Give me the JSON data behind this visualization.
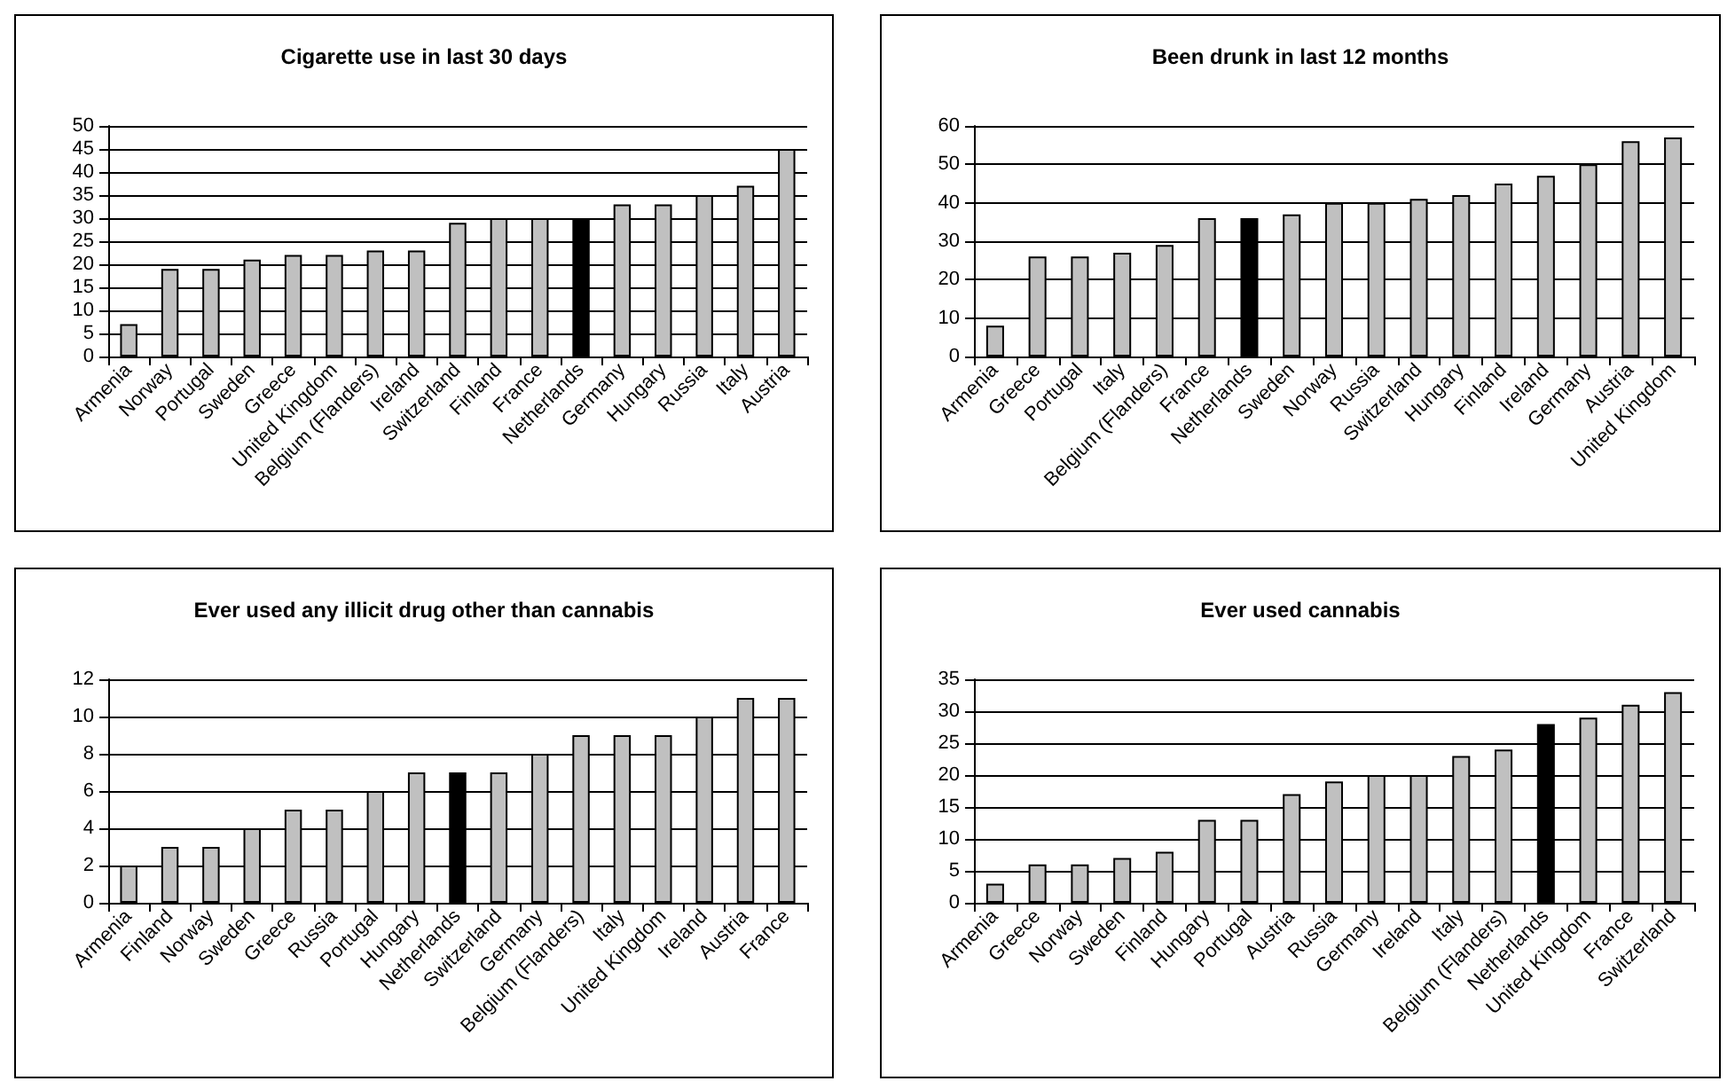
{
  "chart_data": [
    {
      "type": "bar",
      "title": "Cigarette use in last 30 days",
      "categories": [
        "Armenia",
        "Norway",
        "Portugal",
        "Sweden",
        "Greece",
        "United Kingdom",
        "Belgium (Flanders)",
        "Ireland",
        "Switzerland",
        "Finland",
        "France",
        "Netherlands",
        "Germany",
        "Hungary",
        "Russia",
        "Italy",
        "Austria"
      ],
      "values": [
        7,
        19,
        19,
        21,
        22,
        22,
        23,
        23,
        29,
        30,
        30,
        30,
        33,
        33,
        35,
        37,
        45
      ],
      "colors": [
        "#c0c0c0",
        "#c0c0c0",
        "#c0c0c0",
        "#c0c0c0",
        "#c0c0c0",
        "#c0c0c0",
        "#c0c0c0",
        "#c0c0c0",
        "#c0c0c0",
        "#c0c0c0",
        "#c0c0c0",
        "#000000",
        "#c0c0c0",
        "#c0c0c0",
        "#c0c0c0",
        "#c0c0c0",
        "#c0c0c0"
      ],
      "ylim": [
        0,
        50
      ],
      "yticks": [
        0,
        5,
        10,
        15,
        20,
        25,
        30,
        35,
        40,
        45,
        50
      ],
      "grid": "y"
    },
    {
      "type": "bar",
      "title": "Been drunk in last 12 months",
      "categories": [
        "Armenia",
        "Greece",
        "Portugal",
        "Italy",
        "Belgium (Flanders)",
        "France",
        "Netherlands",
        "Sweden",
        "Norway",
        "Russia",
        "Switzerland",
        "Hungary",
        "Finland",
        "Ireland",
        "Germany",
        "Austria",
        "United Kingdom"
      ],
      "values": [
        8,
        26,
        26,
        27,
        29,
        36,
        36,
        37,
        40,
        40,
        41,
        42,
        45,
        47,
        50,
        56,
        57
      ],
      "colors": [
        "#c0c0c0",
        "#c0c0c0",
        "#c0c0c0",
        "#c0c0c0",
        "#c0c0c0",
        "#c0c0c0",
        "#000000",
        "#c0c0c0",
        "#c0c0c0",
        "#c0c0c0",
        "#c0c0c0",
        "#c0c0c0",
        "#c0c0c0",
        "#c0c0c0",
        "#c0c0c0",
        "#c0c0c0",
        "#c0c0c0"
      ],
      "ylim": [
        0,
        60
      ],
      "yticks": [
        0,
        10,
        20,
        30,
        40,
        50,
        60
      ],
      "grid": "y"
    },
    {
      "type": "bar",
      "title": "Ever used any illicit drug other than cannabis",
      "categories": [
        "Armenia",
        "Finland",
        "Norway",
        "Sweden",
        "Greece",
        "Russia",
        "Portugal",
        "Hungary",
        "Netherlands",
        "Switzerland",
        "Germany",
        "Belgium (Flanders)",
        "Italy",
        "United Kingdom",
        "Ireland",
        "Austria",
        "France"
      ],
      "values": [
        2,
        3,
        3,
        4,
        5,
        5,
        6,
        7,
        7,
        7,
        8,
        9,
        9,
        9,
        10,
        11,
        11
      ],
      "colors": [
        "#c0c0c0",
        "#c0c0c0",
        "#c0c0c0",
        "#c0c0c0",
        "#c0c0c0",
        "#c0c0c0",
        "#c0c0c0",
        "#c0c0c0",
        "#000000",
        "#c0c0c0",
        "#c0c0c0",
        "#c0c0c0",
        "#c0c0c0",
        "#c0c0c0",
        "#c0c0c0",
        "#c0c0c0",
        "#c0c0c0"
      ],
      "ylim": [
        0,
        12
      ],
      "yticks": [
        0,
        2,
        4,
        6,
        8,
        10,
        12
      ],
      "grid": "y"
    },
    {
      "type": "bar",
      "title": "Ever used cannabis",
      "categories": [
        "Armenia",
        "Greece",
        "Norway",
        "Sweden",
        "Finland",
        "Hungary",
        "Portugal",
        "Austria",
        "Russia",
        "Germany",
        "Ireland",
        "Italy",
        "Belgium (Flanders)",
        "Netherlands",
        "United Kingdom",
        "France",
        "Switzerland"
      ],
      "values": [
        3,
        6,
        6,
        7,
        8,
        13,
        13,
        17,
        19,
        20,
        20,
        23,
        24,
        28,
        29,
        31,
        33
      ],
      "colors": [
        "#c0c0c0",
        "#c0c0c0",
        "#c0c0c0",
        "#c0c0c0",
        "#c0c0c0",
        "#c0c0c0",
        "#c0c0c0",
        "#c0c0c0",
        "#c0c0c0",
        "#c0c0c0",
        "#c0c0c0",
        "#c0c0c0",
        "#c0c0c0",
        "#000000",
        "#c0c0c0",
        "#c0c0c0",
        "#c0c0c0"
      ],
      "ylim": [
        0,
        35
      ],
      "yticks": [
        0,
        5,
        10,
        15,
        20,
        25,
        30,
        35
      ],
      "grid": "y"
    }
  ]
}
